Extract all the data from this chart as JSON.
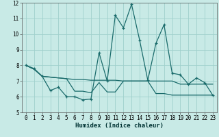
{
  "xlabel": "Humidex (Indice chaleur)",
  "xlim": [
    -0.5,
    23.5
  ],
  "ylim": [
    5,
    12
  ],
  "xticks": [
    0,
    1,
    2,
    3,
    4,
    5,
    6,
    7,
    8,
    9,
    10,
    11,
    12,
    13,
    14,
    15,
    16,
    17,
    18,
    19,
    20,
    21,
    22,
    23
  ],
  "yticks": [
    5,
    6,
    7,
    8,
    9,
    10,
    11,
    12
  ],
  "bg_color": "#c8eae6",
  "line_color": "#1a6b6b",
  "grid_color": "#a0d0cc",
  "line1_x": [
    0,
    1,
    2,
    3,
    4,
    5,
    6,
    7,
    8,
    9,
    10,
    11,
    12,
    13,
    14,
    15,
    16,
    17,
    18,
    19,
    20,
    21,
    22,
    23
  ],
  "line1_y": [
    8.0,
    7.8,
    7.3,
    6.4,
    6.6,
    6.0,
    6.0,
    5.8,
    5.85,
    8.8,
    7.0,
    11.2,
    10.4,
    11.9,
    9.6,
    7.05,
    9.4,
    10.6,
    7.5,
    7.4,
    6.8,
    7.2,
    6.9,
    6.1
  ],
  "line2_x": [
    0,
    1,
    2,
    3,
    4,
    5,
    6,
    7,
    8,
    9,
    10,
    11,
    12,
    13,
    14,
    15,
    16,
    17,
    18,
    19,
    20,
    21,
    22,
    23
  ],
  "line2_y": [
    8.0,
    7.75,
    7.3,
    7.25,
    7.2,
    7.15,
    7.1,
    7.1,
    7.05,
    7.05,
    7.05,
    7.05,
    7.0,
    7.0,
    7.0,
    7.0,
    7.0,
    7.0,
    7.0,
    6.8,
    6.8,
    6.8,
    6.8,
    6.8
  ],
  "line3_x": [
    0,
    1,
    2,
    3,
    4,
    5,
    6,
    7,
    8,
    9,
    10,
    11,
    12,
    13,
    14,
    15,
    16,
    17,
    18,
    19,
    20,
    21,
    22,
    23
  ],
  "line3_y": [
    8.0,
    7.75,
    7.3,
    7.25,
    7.2,
    7.15,
    6.35,
    6.35,
    6.25,
    6.9,
    6.3,
    6.3,
    7.0,
    7.0,
    7.0,
    7.0,
    6.2,
    6.2,
    6.1,
    6.1,
    6.1,
    6.1,
    6.1,
    6.1
  ],
  "tick_fontsize": 5.5,
  "xlabel_fontsize": 6.5
}
